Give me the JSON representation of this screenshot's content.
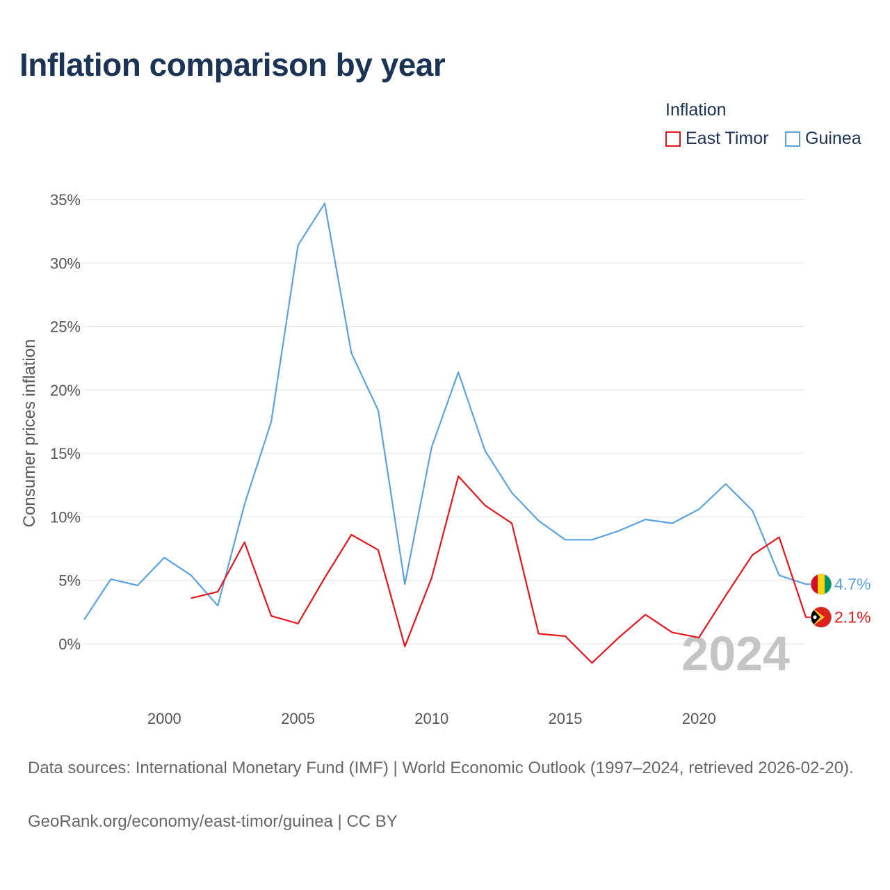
{
  "title": "Inflation comparison by year",
  "legend": {
    "title": "Inflation",
    "items": [
      {
        "label": "East Timor",
        "color": "#e8141b"
      },
      {
        "label": "Guinea",
        "color": "#5aa2e0"
      }
    ]
  },
  "chart_data": {
    "type": "line",
    "title": "Inflation comparison by year",
    "xlabel": "",
    "ylabel": "Consumer prices inflation",
    "xlim": [
      1997,
      2024
    ],
    "ylim": [
      -5,
      35
    ],
    "x_ticks": [
      2000,
      2005,
      2010,
      2015,
      2020
    ],
    "y_ticks": [
      0,
      5,
      10,
      15,
      20,
      25,
      30,
      35
    ],
    "y_tick_labels": [
      "0%",
      "5%",
      "10%",
      "15%",
      "20%",
      "25%",
      "30%",
      "35%"
    ],
    "grid": true,
    "watermark_year": "2024",
    "series": [
      {
        "name": "Guinea",
        "color": "#5aa2e0",
        "end_label": "4.7%",
        "x": [
          1997,
          1998,
          1999,
          2000,
          2001,
          2002,
          2003,
          2004,
          2005,
          2006,
          2007,
          2008,
          2009,
          2010,
          2011,
          2012,
          2013,
          2014,
          2015,
          2016,
          2017,
          2018,
          2019,
          2020,
          2021,
          2022,
          2023,
          2024
        ],
        "values": [
          1.9,
          5.1,
          4.6,
          6.8,
          5.4,
          3.0,
          11.0,
          17.5,
          31.4,
          34.7,
          22.9,
          18.4,
          4.7,
          15.5,
          21.4,
          15.2,
          11.9,
          9.7,
          8.2,
          8.2,
          8.9,
          9.8,
          9.5,
          10.6,
          12.6,
          10.5,
          5.4,
          4.7
        ]
      },
      {
        "name": "East Timor",
        "color": "#e8141b",
        "end_label": "2.1%",
        "x": [
          2001,
          2002,
          2003,
          2004,
          2005,
          2006,
          2007,
          2008,
          2009,
          2010,
          2011,
          2012,
          2013,
          2014,
          2015,
          2016,
          2017,
          2018,
          2019,
          2020,
          2021,
          2022,
          2023,
          2024
        ],
        "values": [
          3.6,
          4.1,
          8.0,
          2.2,
          1.6,
          5.2,
          8.6,
          7.4,
          -0.2,
          5.2,
          13.2,
          10.9,
          9.5,
          0.8,
          0.6,
          -1.5,
          0.5,
          2.3,
          0.9,
          0.5,
          3.8,
          7.0,
          8.4,
          2.1
        ]
      }
    ]
  },
  "footer": {
    "line1": "Data sources: International Monetary Fund (IMF) | World Economic Outlook (1997–2024, retrieved 2026-02-20).",
    "line2": "GeoRank.org/economy/east-timor/guinea | CC BY"
  }
}
